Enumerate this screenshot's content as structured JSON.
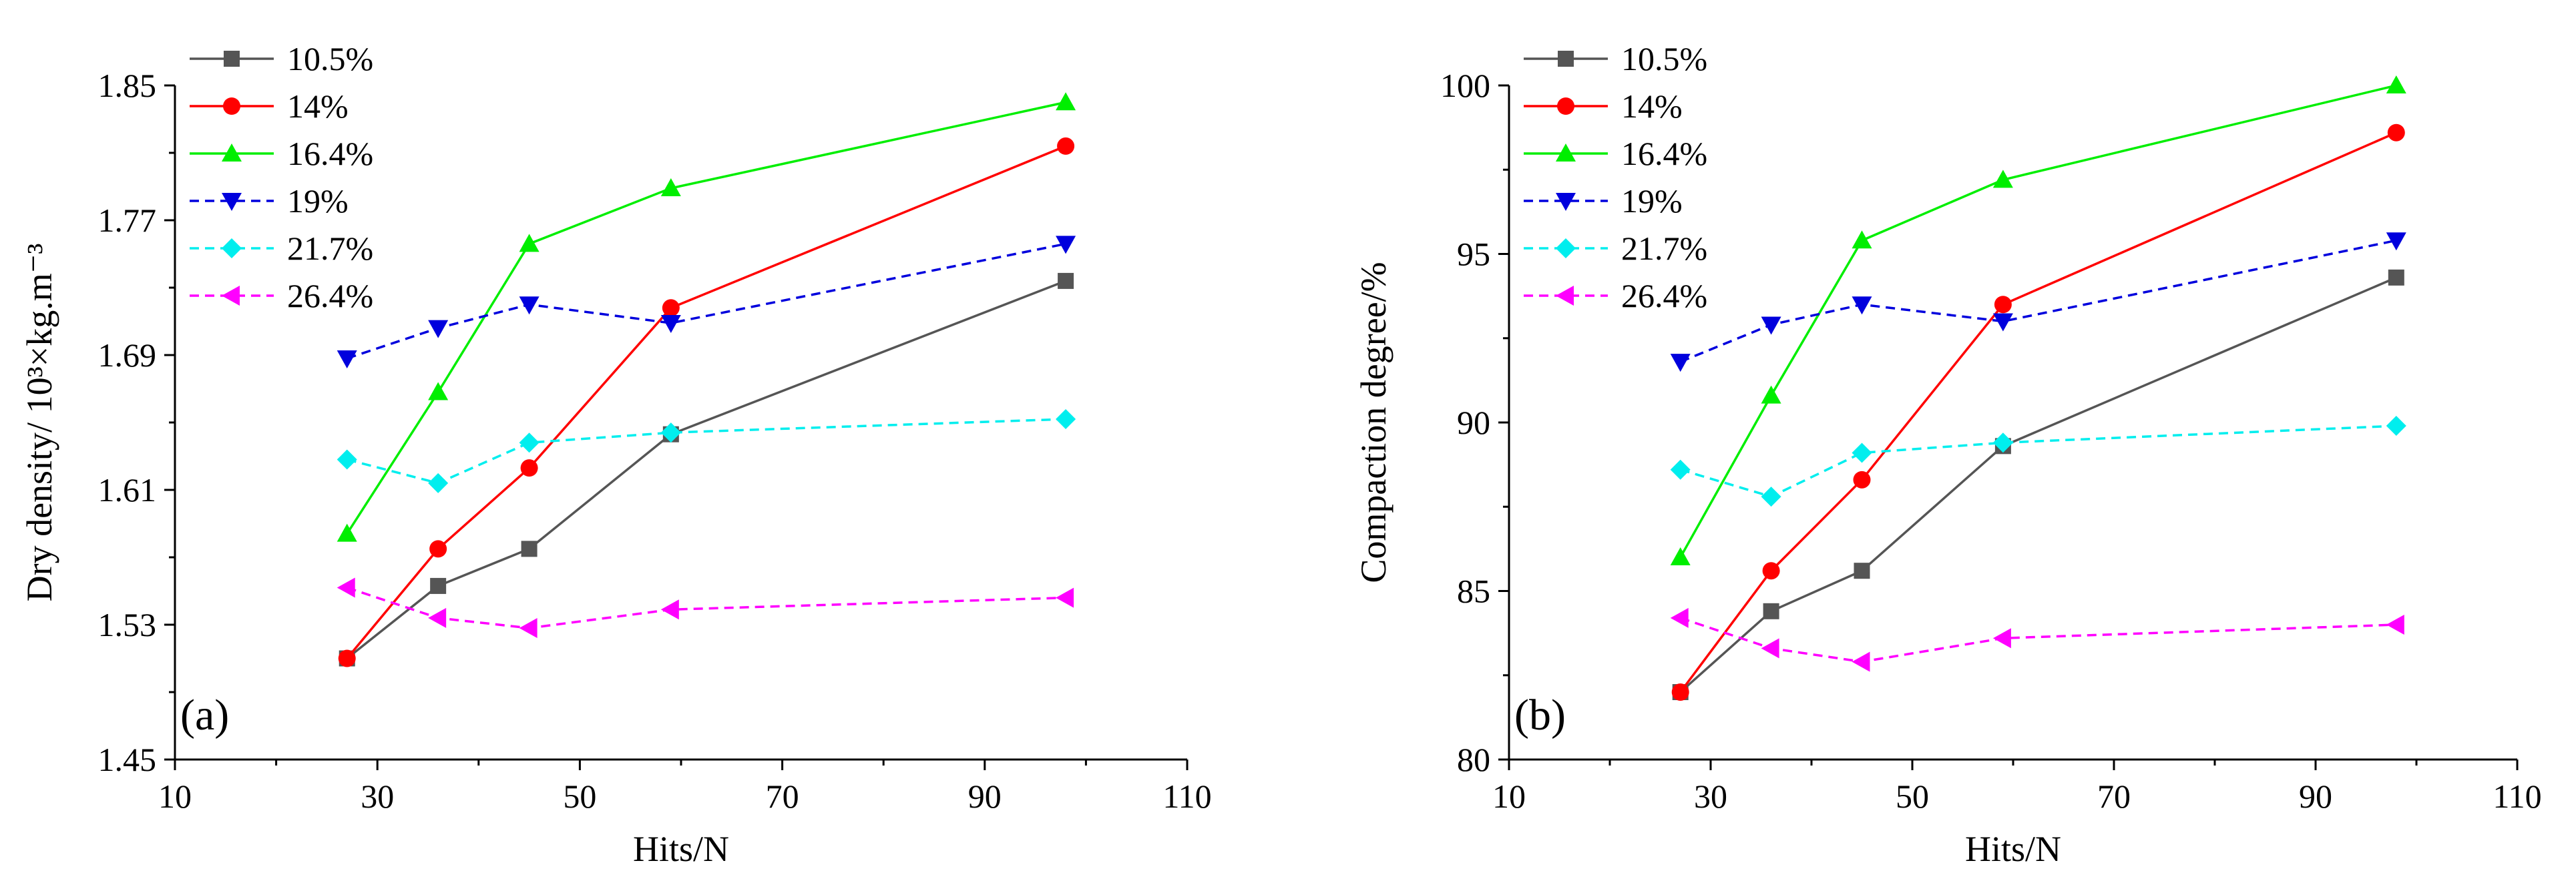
{
  "chart_data": [
    {
      "type": "line",
      "panel_label": "(a)",
      "xlabel": "Hits/N",
      "ylabel": "Dry density/ 10³×kg.m⁻³",
      "xlim": [
        10,
        110
      ],
      "ylim": [
        1.45,
        1.85
      ],
      "xticks": [
        "10",
        "30",
        "50",
        "70",
        "90",
        "110"
      ],
      "yticks": [
        "1.45",
        "1.53",
        "1.61",
        "1.69",
        "1.77",
        "1.85"
      ],
      "x": [
        27,
        36,
        45,
        59,
        98
      ],
      "series": [
        {
          "name": "10.5%",
          "values": [
            1.51,
            1.553,
            1.575,
            1.643,
            1.734
          ],
          "color": "#555555",
          "marker": "square",
          "dash": false
        },
        {
          "name": "14%",
          "values": [
            1.51,
            1.575,
            1.623,
            1.718,
            1.814
          ],
          "color": "#ff0000",
          "marker": "circle",
          "dash": false
        },
        {
          "name": "16.4%",
          "values": [
            1.584,
            1.668,
            1.756,
            1.789,
            1.84
          ],
          "color": "#00ee00",
          "marker": "triangle-up",
          "dash": false
        },
        {
          "name": "19%",
          "values": [
            1.688,
            1.706,
            1.72,
            1.709,
            1.756
          ],
          "color": "#0000dd",
          "marker": "triangle-down",
          "dash": true
        },
        {
          "name": "21.7%",
          "values": [
            1.628,
            1.614,
            1.638,
            1.644,
            1.652
          ],
          "color": "#00eeee",
          "marker": "diamond",
          "dash": true
        },
        {
          "name": "26.4%",
          "values": [
            1.552,
            1.534,
            1.528,
            1.539,
            1.546
          ],
          "color": "#ff00ff",
          "marker": "triangle-left",
          "dash": true
        }
      ]
    },
    {
      "type": "line",
      "panel_label": "(b)",
      "xlabel": "Hits/N",
      "ylabel": "Compaction degree/%",
      "xlim": [
        10,
        110
      ],
      "ylim": [
        80,
        100
      ],
      "xticks": [
        "10",
        "30",
        "50",
        "70",
        "90",
        "110"
      ],
      "yticks": [
        "80",
        "85",
        "90",
        "95",
        "100"
      ],
      "x": [
        27,
        36,
        45,
        59,
        98
      ],
      "series": [
        {
          "name": "10.5%",
          "values": [
            82.0,
            84.4,
            85.6,
            89.3,
            94.3
          ],
          "color": "#555555",
          "marker": "square",
          "dash": false
        },
        {
          "name": "14%",
          "values": [
            82.0,
            85.6,
            88.3,
            93.5,
            98.6
          ],
          "color": "#ff0000",
          "marker": "circle",
          "dash": false
        },
        {
          "name": "16.4%",
          "values": [
            86.0,
            90.8,
            95.4,
            97.2,
            100.0
          ],
          "color": "#00ee00",
          "marker": "triangle-up",
          "dash": false
        },
        {
          "name": "19%",
          "values": [
            91.8,
            92.9,
            93.5,
            93.0,
            95.4
          ],
          "color": "#0000dd",
          "marker": "triangle-down",
          "dash": true
        },
        {
          "name": "21.7%",
          "values": [
            88.6,
            87.8,
            89.1,
            89.4,
            89.9
          ],
          "color": "#00eeee",
          "marker": "diamond",
          "dash": true
        },
        {
          "name": "26.4%",
          "values": [
            84.2,
            83.3,
            82.9,
            83.6,
            84.0
          ],
          "color": "#ff00ff",
          "marker": "triangle-left",
          "dash": true
        }
      ]
    }
  ]
}
